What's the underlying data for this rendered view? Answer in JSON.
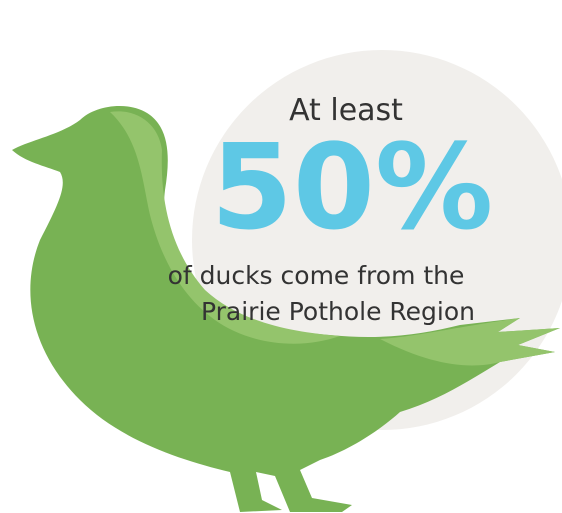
{
  "infographic": {
    "intro": "At least",
    "stat": "50%",
    "caption": [
      "of ducks come from the",
      "Prairie Pothole Region"
    ]
  }
}
